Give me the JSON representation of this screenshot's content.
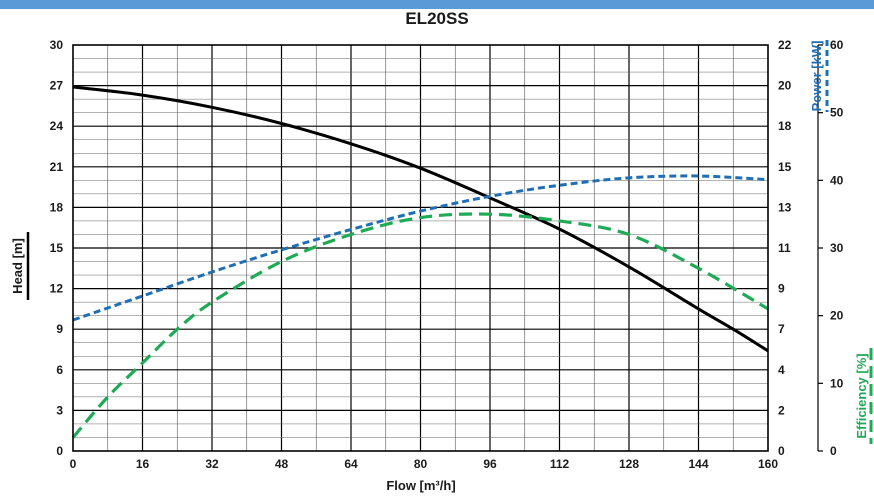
{
  "chart_data": {
    "type": "line",
    "title": "EL20SS",
    "xlabel": "Flow [m³/h]",
    "xlim": [
      0,
      160
    ],
    "x_ticks": [
      0,
      16,
      32,
      48,
      64,
      80,
      96,
      112,
      128,
      144,
      160
    ],
    "head_axis": {
      "label": "Head [m]",
      "lim": [
        0,
        30
      ],
      "ticks": [
        0,
        3,
        6,
        9,
        12,
        15,
        18,
        21,
        24,
        27,
        30
      ]
    },
    "power_axis": {
      "label": "Power [kW]",
      "lim": [
        0,
        22
      ],
      "ticks": [
        0,
        2,
        4,
        7,
        9,
        11,
        13,
        15,
        18,
        20,
        22
      ],
      "color": "#1f6fb5"
    },
    "efficiency_axis": {
      "label": "Efficiency [%]",
      "lim": [
        0,
        60
      ],
      "ticks": [
        0,
        10,
        20,
        30,
        40,
        50,
        60
      ],
      "color": "#1faa55"
    },
    "grid": true,
    "series": [
      {
        "name": "Head [m]",
        "axis": "head",
        "color": "#000000",
        "style": "solid",
        "x": [
          0,
          16,
          32,
          48,
          64,
          80,
          96,
          112,
          128,
          144,
          152,
          160
        ],
        "y": [
          26.9,
          26.3,
          25.4,
          24.2,
          22.7,
          20.9,
          18.7,
          16.4,
          13.6,
          10.5,
          9.0,
          7.4
        ]
      },
      {
        "name": "Power [kW]",
        "axis": "power",
        "color": "#1f6fb5",
        "style": "dashed",
        "x": [
          0,
          16,
          32,
          48,
          64,
          80,
          96,
          112,
          128,
          144,
          160
        ],
        "y": [
          7.1,
          8.4,
          9.7,
          10.9,
          12.0,
          13.0,
          13.8,
          14.4,
          14.8,
          14.9,
          14.7
        ]
      },
      {
        "name": "Efficiency [%]",
        "axis": "efficiency",
        "color": "#1faa55",
        "style": "dashed",
        "x": [
          0,
          8,
          16,
          24,
          32,
          48,
          64,
          80,
          96,
          112,
          128,
          144,
          160
        ],
        "y": [
          2,
          8,
          13,
          18,
          22,
          28,
          32,
          34.5,
          35,
          34,
          32,
          27,
          21
        ]
      }
    ]
  }
}
